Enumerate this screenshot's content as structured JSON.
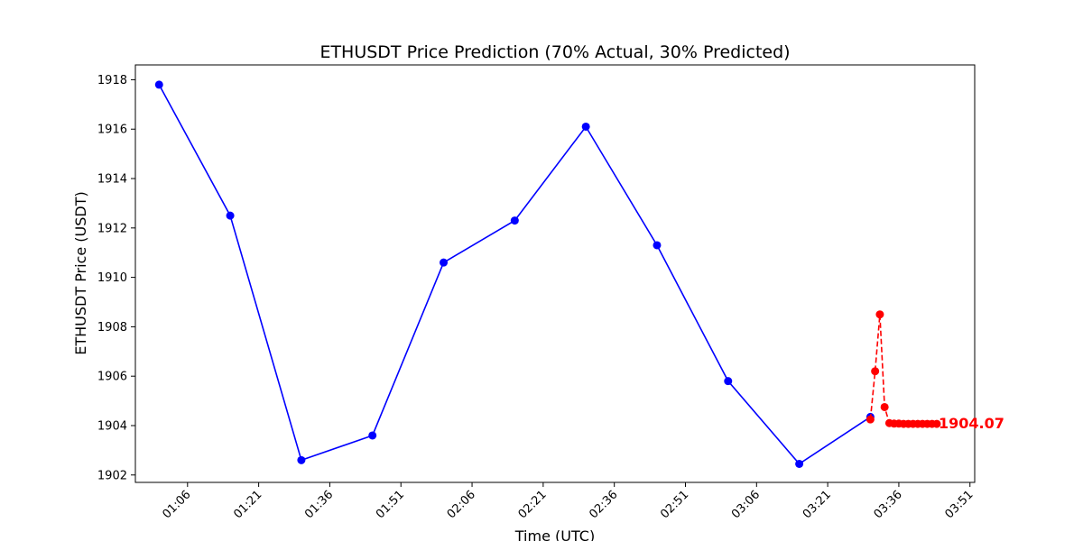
{
  "chart_data": {
    "type": "line",
    "title": "ETHUSDT Price Prediction (70% Actual, 30% Predicted)",
    "xlabel": "Time (UTC)",
    "ylabel": "ETHUSDT Price (USDT)",
    "x_axis": {
      "kind": "time",
      "range": [
        "00:55",
        "03:52"
      ],
      "ticks": [
        "01:06",
        "01:21",
        "01:36",
        "01:51",
        "02:06",
        "02:21",
        "02:36",
        "02:51",
        "03:06",
        "03:21",
        "03:36",
        "03:51"
      ]
    },
    "y_axis": {
      "range": [
        1901.7,
        1918.6
      ],
      "ticks": [
        1902,
        1904,
        1906,
        1908,
        1910,
        1912,
        1914,
        1916,
        1918
      ]
    },
    "grid": false,
    "series": [
      {
        "style": "solid",
        "color": "#0000ff",
        "points": [
          {
            "x": "01:00",
            "y": 1917.8
          },
          {
            "x": "01:15",
            "y": 1912.5
          },
          {
            "x": "01:30",
            "y": 1902.6
          },
          {
            "x": "01:45",
            "y": 1903.6
          },
          {
            "x": "02:00",
            "y": 1910.6
          },
          {
            "x": "02:15",
            "y": 1912.3
          },
          {
            "x": "02:30",
            "y": 1916.1
          },
          {
            "x": "02:45",
            "y": 1911.3
          },
          {
            "x": "03:00",
            "y": 1905.8
          },
          {
            "x": "03:15",
            "y": 1902.45
          },
          {
            "x": "03:30",
            "y": 1904.35
          }
        ]
      },
      {
        "style": "dashed",
        "color": "#ff0000",
        "points": [
          {
            "x": "03:30",
            "y": 1904.25
          },
          {
            "x": "03:31",
            "y": 1906.2
          },
          {
            "x": "03:32",
            "y": 1908.5
          },
          {
            "x": "03:33",
            "y": 1904.75
          },
          {
            "x": "03:34",
            "y": 1904.1
          },
          {
            "x": "03:35",
            "y": 1904.08
          },
          {
            "x": "03:36",
            "y": 1904.08
          },
          {
            "x": "03:37",
            "y": 1904.07
          },
          {
            "x": "03:38",
            "y": 1904.07
          },
          {
            "x": "03:39",
            "y": 1904.07
          },
          {
            "x": "03:40",
            "y": 1904.07
          },
          {
            "x": "03:41",
            "y": 1904.07
          },
          {
            "x": "03:42",
            "y": 1904.07
          },
          {
            "x": "03:43",
            "y": 1904.07
          },
          {
            "x": "03:44",
            "y": 1904.07
          }
        ]
      }
    ],
    "annotation": {
      "text": "1904.07",
      "x": "03:44",
      "y": 1904.07,
      "color": "#ff0000"
    }
  }
}
